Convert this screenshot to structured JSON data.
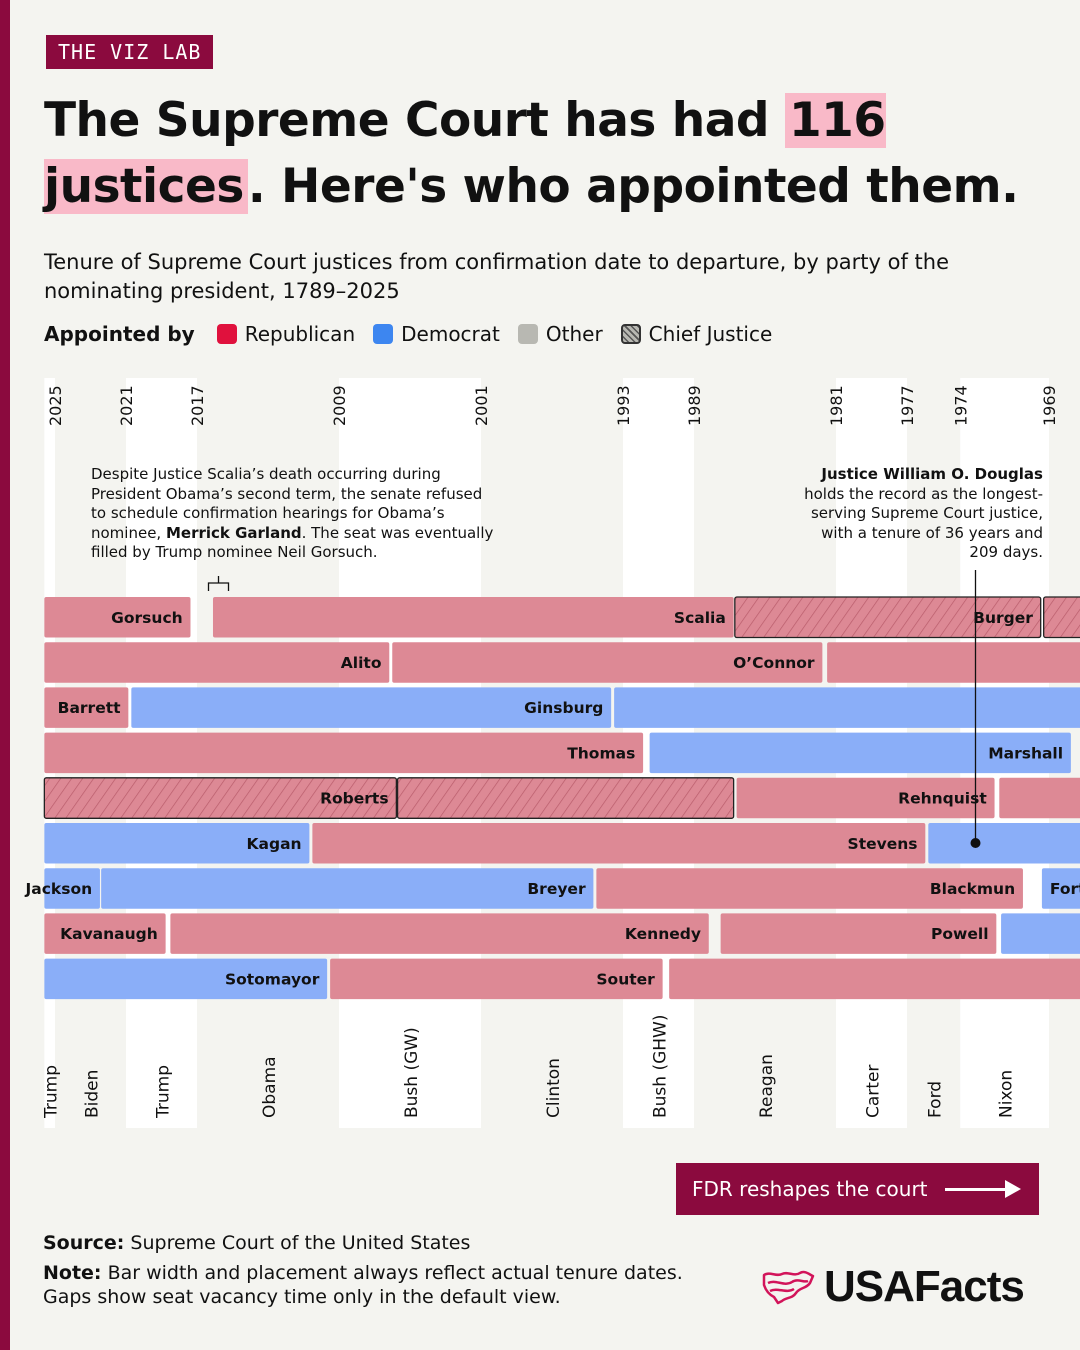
{
  "brand": {
    "badge": "THE VIZ LAB",
    "logo_text": "USAFacts",
    "accent": "#8b0a3e"
  },
  "title": {
    "pre": "The Supreme Court has had ",
    "highlight": "116 justices",
    "post": ". Here's who appointed them."
  },
  "subtitle": "Tenure of Supreme Court justices from confirmation date to departure, by party of the nominating president, 1789–2025",
  "legend": {
    "label": "Appointed by",
    "items": [
      {
        "label": "Republican",
        "color": "#e0113d"
      },
      {
        "label": "Democrat",
        "color": "#3d86f0"
      },
      {
        "label": "Other",
        "color": "#b8b8b2"
      },
      {
        "label": "Chief Justice",
        "color": "#b8b8b2",
        "hatched": true
      }
    ]
  },
  "annotations": {
    "scalia_part1": "Despite Justice Scalia’s death occurring during President Obama’s second term, the senate refused to schedule confirmation hearings for Obama’s nominee, ",
    "scalia_bold": "Merrick Garland",
    "scalia_part2": ". The seat was eventually filled by Trump nominee Neil Gorsuch.",
    "douglas_bold": "Justice William O. Douglas",
    "douglas_rest": " holds the record as the longest-serving Supreme Court justice, with a tenure of 36 years and 209 days."
  },
  "next_button": {
    "label": "FDR reshapes the court"
  },
  "source": {
    "label": "Source:",
    "text": " Supreme Court of the United States"
  },
  "note": {
    "label": "Note:",
    "text": " Bar width and placement always reflect actual tenure dates. Gaps show seat vacancy time only in the default view."
  },
  "chart_data": {
    "type": "timeline",
    "x_direction": "right-to-left",
    "xlim": [
      1966,
      2025
    ],
    "colors": {
      "Republican": "#dd8995",
      "Democrat": "#8aaef8",
      "rep_hatch": "#b95c6b"
    },
    "year_ticks": [
      2025,
      2021,
      2017,
      2009,
      2001,
      1993,
      1989,
      1981,
      1977,
      1974,
      1969
    ],
    "presidents": [
      {
        "name": "Trump",
        "start": 2025,
        "end": 2025.6
      },
      {
        "name": "Biden",
        "start": 2021,
        "end": 2025
      },
      {
        "name": "Trump",
        "start": 2017,
        "end": 2021
      },
      {
        "name": "Obama",
        "start": 2009,
        "end": 2017
      },
      {
        "name": "Bush (GW)",
        "start": 2001,
        "end": 2009
      },
      {
        "name": "Clinton",
        "start": 1993,
        "end": 2001
      },
      {
        "name": "Bush (GHW)",
        "start": 1989,
        "end": 1993
      },
      {
        "name": "Reagan",
        "start": 1981,
        "end": 1989
      },
      {
        "name": "Carter",
        "start": 1977,
        "end": 1981
      },
      {
        "name": "Ford",
        "start": 1974,
        "end": 1977
      },
      {
        "name": "Nixon",
        "start": 1969,
        "end": 1974
      }
    ],
    "rows": [
      [
        {
          "name": "Gorsuch",
          "party": "Republican",
          "start": 2017.3,
          "end": 2025.6,
          "chief": false
        },
        {
          "name": "Scalia",
          "party": "Republican",
          "start": 1986.7,
          "end": 2016.1,
          "chief": false
        },
        {
          "name": "Burger",
          "party": "Republican",
          "start": 1969.4,
          "end": 1986.7,
          "chief": true
        },
        {
          "name": "",
          "party": "Republican",
          "start": 1950,
          "end": 1969.3,
          "chief": true
        }
      ],
      [
        {
          "name": "Alito",
          "party": "Republican",
          "start": 2006.1,
          "end": 2025.6,
          "chief": false
        },
        {
          "name": "O’Connor",
          "party": "Republican",
          "start": 1981.7,
          "end": 2006.0,
          "chief": false
        },
        {
          "name": "",
          "party": "Republican",
          "start": 1950,
          "end": 1981.5,
          "chief": false
        }
      ],
      [
        {
          "name": "Barrett",
          "party": "Republican",
          "start": 2020.8,
          "end": 2025.6,
          "chief": false
        },
        {
          "name": "Ginsburg",
          "party": "Democrat",
          "start": 1993.6,
          "end": 2020.7,
          "chief": false
        },
        {
          "name": "",
          "party": "Democrat",
          "start": 1950,
          "end": 1993.5,
          "chief": false
        }
      ],
      [
        {
          "name": "Thomas",
          "party": "Republican",
          "start": 1991.8,
          "end": 2025.6,
          "chief": false
        },
        {
          "name": "Marshall",
          "party": "Democrat",
          "start": 1967.7,
          "end": 1991.5,
          "chief": false
        }
      ],
      [
        {
          "name": "Roberts",
          "party": "Republican",
          "start": 2005.7,
          "end": 2025.6,
          "chief": true
        },
        {
          "name": "",
          "party": "Republican",
          "start": 1986.7,
          "end": 2005.7,
          "chief": true
        },
        {
          "name": "Rehnquist",
          "party": "Republican",
          "start": 1972.0,
          "end": 1986.6,
          "chief": false
        },
        {
          "name": "",
          "party": "Republican",
          "start": 1950,
          "end": 1971.8,
          "chief": false
        }
      ],
      [
        {
          "name": "Kagan",
          "party": "Democrat",
          "start": 2010.6,
          "end": 2025.6,
          "chief": false
        },
        {
          "name": "Stevens",
          "party": "Republican",
          "start": 1975.9,
          "end": 2010.5,
          "chief": false
        },
        {
          "name": "",
          "party": "Democrat",
          "start": 1950,
          "end": 1975.8,
          "chief": false
        }
      ],
      [
        {
          "name": "Jackson",
          "party": "Democrat",
          "start": 2022.4,
          "end": 2025.6,
          "chief": false
        },
        {
          "name": "Breyer",
          "party": "Democrat",
          "start": 1994.6,
          "end": 2022.4,
          "chief": false
        },
        {
          "name": "Blackmun",
          "party": "Republican",
          "start": 1970.4,
          "end": 1994.5,
          "chief": false
        },
        {
          "name": "Fortas",
          "party": "Democrat",
          "start": 1950,
          "end": 1969.4,
          "chief": false
        }
      ],
      [
        {
          "name": "Kavanaugh",
          "party": "Republican",
          "start": 2018.7,
          "end": 2025.6,
          "chief": false
        },
        {
          "name": "Kennedy",
          "party": "Republican",
          "start": 1988.1,
          "end": 2018.5,
          "chief": false
        },
        {
          "name": "Powell",
          "party": "Republican",
          "start": 1971.9,
          "end": 1987.5,
          "chief": false
        },
        {
          "name": "",
          "party": "Democrat",
          "start": 1950,
          "end": 1971.7,
          "chief": false
        }
      ],
      [
        {
          "name": "Sotomayor",
          "party": "Democrat",
          "start": 2009.6,
          "end": 2025.6,
          "chief": false
        },
        {
          "name": "Souter",
          "party": "Republican",
          "start": 1990.7,
          "end": 2009.5,
          "chief": false
        },
        {
          "name": "",
          "party": "Republican",
          "start": 1950,
          "end": 1990.4,
          "chief": false
        }
      ]
    ]
  }
}
